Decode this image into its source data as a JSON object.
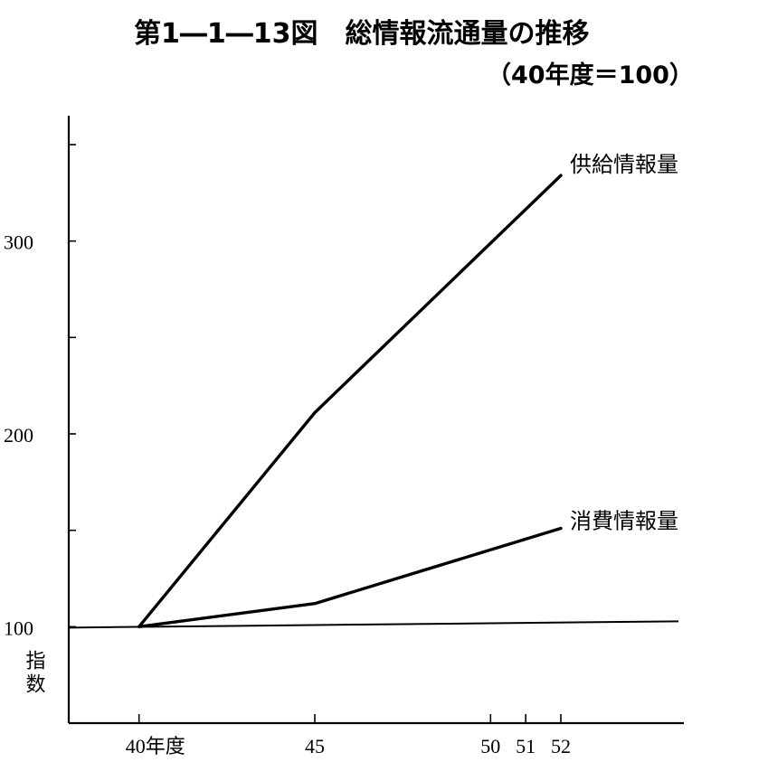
{
  "chart_data": {
    "type": "line",
    "title": "第1―1―13図　総情報流通量の推移",
    "subtitle": "（40年度＝100）",
    "ylabel": "指数",
    "x": [
      40,
      45,
      50,
      51,
      52
    ],
    "x_tick_labels": [
      "40年度",
      "45",
      "50",
      "51",
      "52"
    ],
    "xlim": [
      38,
      55.5
    ],
    "ylim": [
      50,
      365
    ],
    "y_ticks": [
      100,
      150,
      200,
      250,
      300,
      350
    ],
    "y_tick_labels": [
      {
        "value": 100,
        "label": "100"
      },
      {
        "value": 200,
        "label": "200"
      },
      {
        "value": 300,
        "label": "300"
      }
    ],
    "baseline": 100,
    "series": [
      {
        "name": "供給情報量",
        "x": [
          40,
          45,
          52
        ],
        "values": [
          100,
          211,
          334
        ]
      },
      {
        "name": "消費情報量",
        "x": [
          40,
          45,
          52
        ],
        "values": [
          100,
          112,
          151
        ]
      }
    ]
  }
}
